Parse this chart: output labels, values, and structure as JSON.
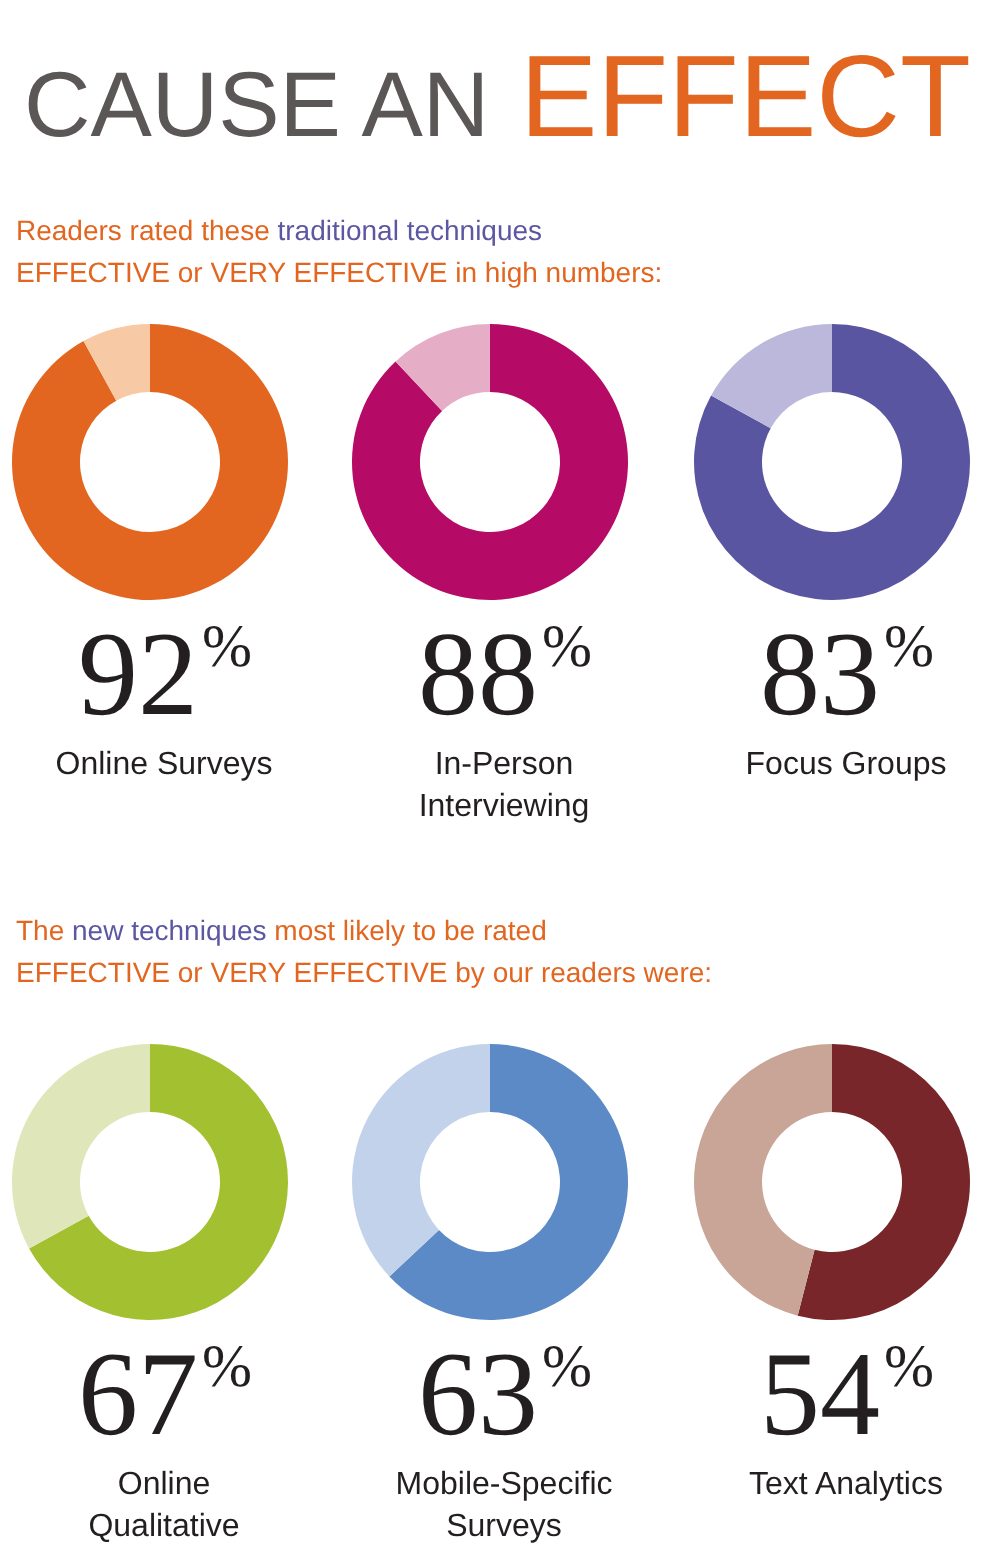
{
  "chart_data": [
    {
      "type": "donut",
      "title": "CAUSE AN EFFECT",
      "subtitle": "Readers rated these traditional techniques\nEFFECTIVE or VERY EFFECTIVE in high numbers:",
      "categories": [
        null,
        null
      ],
      "values": [
        92,
        8
      ],
      "colors": [
        "#e2661f",
        "#f8c9a5"
      ],
      "value_labels": [
        "92%",
        null
      ],
      "xlabel": "Online Surveys"
    },
    {
      "type": "donut",
      "categories": [
        null,
        null
      ],
      "values": [
        88,
        12
      ],
      "colors": [
        "#b50a65",
        "#e5aec6"
      ],
      "value_labels": [
        "88%",
        null
      ],
      "xlabel": "In-Person Interviewing"
    },
    {
      "type": "donut",
      "categories": [
        null,
        null
      ],
      "values": [
        83,
        17
      ],
      "colors": [
        "#5a55a0",
        "#bcb8dc"
      ],
      "value_labels": [
        "83%",
        null
      ],
      "xlabel": "Focus Groups"
    },
    {
      "type": "donut",
      "subtitle": "The new techniques most likely to be rated\nEFFECTIVE or VERY EFFECTIVE by our readers were:",
      "categories": [
        null,
        null
      ],
      "values": [
        67,
        33
      ],
      "colors": [
        "#a3c030",
        "#dfe7ba"
      ],
      "value_labels": [
        "67%",
        null
      ],
      "xlabel": "Online Qualitative"
    },
    {
      "type": "donut",
      "categories": [
        null,
        null
      ],
      "values": [
        63,
        37
      ],
      "colors": [
        "#5b8ac6",
        "#c3d2eb"
      ],
      "value_labels": [
        "63%",
        null
      ],
      "xlabel": "Mobile-Specific Surveys"
    },
    {
      "type": "donut",
      "categories": [
        null,
        null
      ],
      "values": [
        54,
        46
      ],
      "colors": [
        "#78262a",
        "#c9a597"
      ],
      "value_labels": [
        "54%",
        null
      ],
      "xlabel": "Text Analytics"
    }
  ]
}
